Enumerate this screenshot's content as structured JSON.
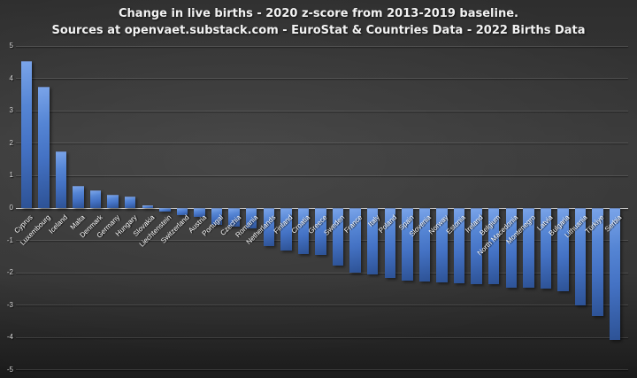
{
  "title": {
    "line1": "Change in live births - 2020 z-score from 2013-2019 baseline.",
    "line2": "Sources at openvaet.substack.com - EuroStat & Countries Data - 2022 Births Data"
  },
  "colors": {
    "background_base": "#363636",
    "bar_top": "#7aa4e9",
    "bar_mid": "#4472c4",
    "bar_bottom": "#2d5295",
    "gridline": "rgba(255,255,255,0.12)",
    "zero_line": "#c8c8c8",
    "tick_label": "#d9d9d9",
    "category_label": "#ffffff",
    "title_text": "#f2f2f2"
  },
  "chart_data": {
    "type": "bar",
    "title": "Change in live births - 2020 z-score from 2013-2019 baseline.",
    "subtitle": "Sources at openvaet.substack.com - EuroStat & Countries Data - 2022 Births Data",
    "xlabel": "",
    "ylabel": "",
    "ylim": [
      -5,
      5
    ],
    "yticks": [
      5,
      4,
      3,
      2,
      1,
      0,
      -1,
      -2,
      -3,
      -4,
      -5
    ],
    "grid": true,
    "legend": "none",
    "categories": [
      "Cyprus",
      "Luxembourg",
      "Iceland",
      "Malta",
      "Denmark",
      "Germany",
      "Hungary",
      "Slovakia",
      "Liechtenstein",
      "Switzerland",
      "Austria",
      "Portugal",
      "Czechia",
      "Romania",
      "Netherlands",
      "Finland",
      "Croatia",
      "Greece",
      "Sweden",
      "France",
      "Italy",
      "Poland",
      "Spain",
      "Slovenia",
      "Norway",
      "Estonia",
      "Ireland",
      "Belgium",
      "North Macedonia",
      "Montenegro",
      "Latvia",
      "Bulgaria",
      "Lithuania",
      "Türkiye",
      "Serbia"
    ],
    "values": [
      4.55,
      3.74,
      1.76,
      0.69,
      0.56,
      0.41,
      0.35,
      0.07,
      -0.11,
      -0.21,
      -0.27,
      -0.52,
      -0.57,
      -0.62,
      -1.17,
      -1.32,
      -1.41,
      -1.46,
      -1.78,
      -2.01,
      -2.04,
      -2.16,
      -2.24,
      -2.28,
      -2.31,
      -2.32,
      -2.34,
      -2.36,
      -2.45,
      -2.47,
      -2.5,
      -2.57,
      -3.01,
      -3.35,
      -4.09
    ]
  }
}
